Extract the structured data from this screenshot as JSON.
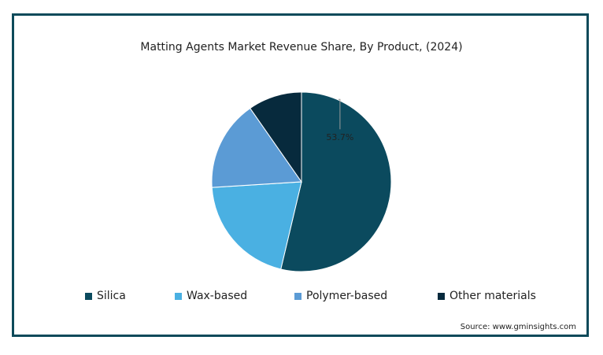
{
  "chart_data": {
    "type": "pie",
    "title": "Matting Agents Market Revenue Share, By Product, (2024)",
    "slices": [
      {
        "name": "Silica",
        "value": 53.7,
        "color": "#0b4a5e",
        "label": "53.7%"
      },
      {
        "name": "Wax-based",
        "value": 20.3,
        "color": "#4ab0e2",
        "label": ""
      },
      {
        "name": "Polymer-based",
        "value": 16.3,
        "color": "#5b9bd5",
        "label": ""
      },
      {
        "name": "Other materials",
        "value": 9.7,
        "color": "#072a3d",
        "label": ""
      }
    ],
    "legend_position": "bottom"
  },
  "source": "Source: www.gminsights.com"
}
